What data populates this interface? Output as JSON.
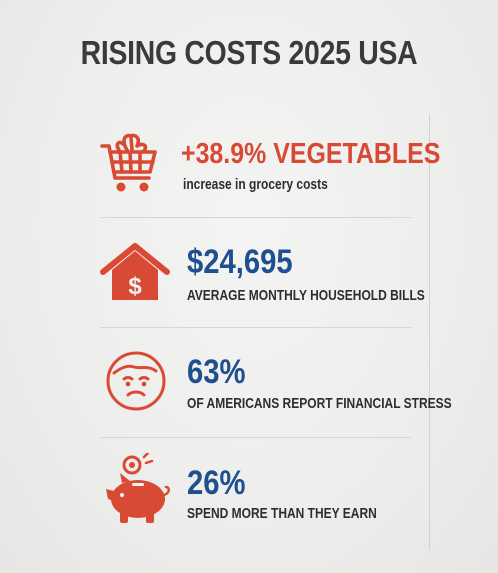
{
  "title": "RISING COSTS 2025 USA",
  "colors": {
    "accent_red": "#d94a34",
    "accent_blue": "#1e4f8f",
    "text_dark": "#2d2d2d"
  },
  "stats": [
    {
      "icon": "shopping-cart-vegetables-icon",
      "value": "+38.9% VEGETABLES",
      "caption": "increase in grocery costs"
    },
    {
      "icon": "house-dollar-icon",
      "value": "$24,695",
      "caption": "AVERAGE MONTHLY HOUSEHOLD BILLS"
    },
    {
      "icon": "stressed-face-icon",
      "value": "63%",
      "caption": "OF AMERICANS REPORT FINANCIAL STRESS"
    },
    {
      "icon": "piggy-bank-icon",
      "value": "26%",
      "caption": "SPEND MORE THAN THEY EARN"
    }
  ]
}
